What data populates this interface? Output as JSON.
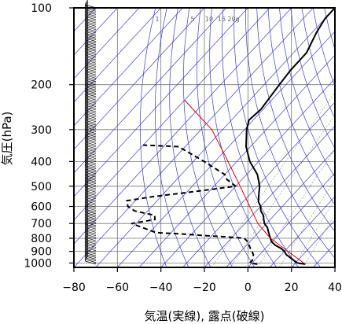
{
  "chart_data": {
    "type": "line",
    "subtype": "skew-t",
    "xlabel": "気温(実線), 露点(破線)",
    "ylabel": "気圧(hPa)",
    "xlim": [
      -80,
      40
    ],
    "ylim": [
      1040,
      100
    ],
    "yscale": "log",
    "skew": {
      "t_shift_at_100hPa": 110
    },
    "x_ticks": [
      "−80",
      "−60",
      "−40",
      "−20",
      "0",
      "20",
      "40"
    ],
    "x_tick_values": [
      -80,
      -60,
      -40,
      -20,
      0,
      20,
      40
    ],
    "y_ticks": [
      "100",
      "200",
      "300",
      "400",
      "500",
      "600",
      "700",
      "800",
      "900",
      "1000"
    ],
    "y_tick_values": [
      100,
      200,
      300,
      400,
      500,
      600,
      700,
      800,
      900,
      1000
    ],
    "mixing_ratio_labels": [
      "1",
      "5",
      "10",
      "15",
      "20g"
    ],
    "series": [
      {
        "role": "temperature",
        "style": "solid",
        "color": "#000000",
        "points": [
          [
            1010,
            25
          ],
          [
            1000,
            21
          ],
          [
            975,
            18
          ],
          [
            950,
            15
          ],
          [
            925,
            12
          ],
          [
            900,
            10
          ],
          [
            875,
            7
          ],
          [
            850,
            3
          ],
          [
            825,
            0
          ],
          [
            800,
            -2
          ],
          [
            775,
            -4
          ],
          [
            750,
            -6
          ],
          [
            725,
            -8
          ],
          [
            700,
            -11
          ],
          [
            675,
            -13
          ],
          [
            650,
            -15
          ],
          [
            625,
            -18
          ],
          [
            600,
            -20
          ],
          [
            575,
            -23
          ],
          [
            550,
            -25
          ],
          [
            525,
            -27
          ],
          [
            500,
            -29
          ],
          [
            450,
            -35
          ],
          [
            400,
            -44
          ],
          [
            350,
            -52
          ],
          [
            300,
            -59
          ],
          [
            275,
            -62
          ],
          [
            250,
            -61
          ],
          [
            200,
            -63
          ],
          [
            175,
            -64
          ],
          [
            150,
            -64
          ],
          [
            125,
            -68
          ],
          [
            110,
            -70
          ],
          [
            100,
            -70
          ]
        ]
      },
      {
        "role": "dewpoint",
        "style": "dashed",
        "color": "#000000",
        "points": [
          [
            1010,
            3
          ],
          [
            1000,
            -1
          ],
          [
            975,
            -1
          ],
          [
            950,
            -2
          ],
          [
            925,
            -3
          ],
          [
            900,
            -5
          ],
          [
            875,
            -7
          ],
          [
            850,
            -9
          ],
          [
            825,
            -11
          ],
          [
            800,
            -14
          ],
          [
            790,
            -22
          ],
          [
            780,
            -34
          ],
          [
            770,
            -44
          ],
          [
            760,
            -57
          ],
          [
            700,
            -72
          ],
          [
            675,
            -63
          ],
          [
            650,
            -65
          ],
          [
            625,
            -76
          ],
          [
            600,
            -81
          ],
          [
            570,
            -84
          ],
          [
            550,
            -74
          ],
          [
            525,
            -57
          ],
          [
            500,
            -40
          ],
          [
            470,
            -47
          ],
          [
            450,
            -50
          ],
          [
            400,
            -65
          ],
          [
            350,
            -83
          ],
          [
            345,
            -100
          ]
        ]
      },
      {
        "role": "reference",
        "style": "solid",
        "color": "#e00000",
        "points": [
          [
            1010,
            25
          ],
          [
            800,
            -2
          ],
          [
            700,
            -14
          ],
          [
            500,
            -38
          ],
          [
            400,
            -54
          ],
          [
            300,
            -75
          ],
          [
            230,
            -100
          ]
        ]
      }
    ],
    "grid": true,
    "isotherm_color": "#3b3bd6",
    "wind_barbs": {
      "side": "left",
      "color": "#000000"
    }
  }
}
